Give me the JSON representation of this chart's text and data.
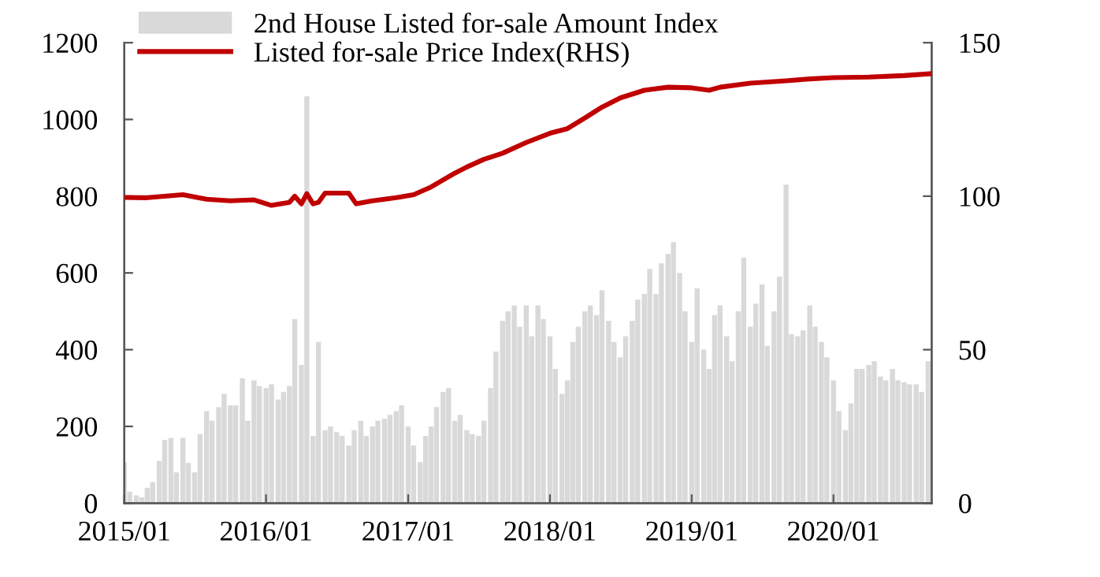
{
  "chart_data": {
    "type": "bar",
    "xlim": [
      "2015-01-01",
      "2020-09-10"
    ],
    "xticks": [
      {
        "value": "2015-01-01",
        "label": "2015/01"
      },
      {
        "value": "2016-01-01",
        "label": "2016/01"
      },
      {
        "value": "2017-01-01",
        "label": "2017/01"
      },
      {
        "value": "2018-01-01",
        "label": "2018/01"
      },
      {
        "value": "2019-01-01",
        "label": "2019/01"
      },
      {
        "value": "2020-01-01",
        "label": "2020/01"
      }
    ],
    "ylim": [
      0,
      1200
    ],
    "yticks": [
      0,
      200,
      400,
      600,
      800,
      1000,
      1200
    ],
    "y2lim": [
      0,
      150
    ],
    "y2ticks": [
      0,
      50,
      100,
      150
    ],
    "grid": false,
    "legend": "top left",
    "series": [
      {
        "name": "2nd House Listed for-sale Amount Index",
        "color": "#d9d9d9",
        "x": [
          "2015-01-01",
          "2015-01-15",
          "2015-02-01",
          "2015-02-15",
          "2015-03-01",
          "2015-03-15",
          "2015-04-01",
          "2015-04-15",
          "2015-05-01",
          "2015-05-15",
          "2015-06-01",
          "2015-06-15",
          "2015-07-01",
          "2015-07-15",
          "2015-08-01",
          "2015-08-15",
          "2015-09-01",
          "2015-09-15",
          "2015-10-01",
          "2015-10-15",
          "2015-11-01",
          "2015-11-15",
          "2015-12-01",
          "2015-12-15",
          "2016-01-01",
          "2016-01-15",
          "2016-02-01",
          "2016-02-15",
          "2016-03-01",
          "2016-03-15",
          "2016-04-01",
          "2016-04-15",
          "2016-05-01",
          "2016-05-15",
          "2016-06-01",
          "2016-06-15",
          "2016-07-01",
          "2016-07-15",
          "2016-08-01",
          "2016-08-15",
          "2016-09-01",
          "2016-09-15",
          "2016-10-01",
          "2016-10-15",
          "2016-11-01",
          "2016-11-15",
          "2016-12-01",
          "2016-12-15",
          "2017-01-01",
          "2017-01-15",
          "2017-02-01",
          "2017-02-15",
          "2017-03-01",
          "2017-03-15",
          "2017-04-01",
          "2017-04-15",
          "2017-05-01",
          "2017-05-15",
          "2017-06-01",
          "2017-06-15",
          "2017-07-01",
          "2017-07-15",
          "2017-08-01",
          "2017-08-15",
          "2017-09-01",
          "2017-09-15",
          "2017-10-01",
          "2017-10-15",
          "2017-11-01",
          "2017-11-15",
          "2017-12-01",
          "2017-12-15",
          "2018-01-01",
          "2018-01-15",
          "2018-02-01",
          "2018-02-15",
          "2018-03-01",
          "2018-03-15",
          "2018-04-01",
          "2018-04-15",
          "2018-05-01",
          "2018-05-15",
          "2018-06-01",
          "2018-06-15",
          "2018-07-01",
          "2018-07-15",
          "2018-08-01",
          "2018-08-15",
          "2018-09-01",
          "2018-09-15",
          "2018-10-01",
          "2018-10-15",
          "2018-11-01",
          "2018-11-15",
          "2018-12-01",
          "2018-12-15",
          "2019-01-01",
          "2019-01-15",
          "2019-02-01",
          "2019-02-15",
          "2019-03-01",
          "2019-03-15",
          "2019-04-01",
          "2019-04-15",
          "2019-05-01",
          "2019-05-15",
          "2019-06-01",
          "2019-06-15",
          "2019-07-01",
          "2019-07-15",
          "2019-08-01",
          "2019-08-15",
          "2019-09-01",
          "2019-09-15",
          "2019-10-01",
          "2019-10-15",
          "2019-11-01",
          "2019-11-15",
          "2019-12-01",
          "2019-12-15",
          "2020-01-01",
          "2020-01-15",
          "2020-02-01",
          "2020-02-15",
          "2020-03-01",
          "2020-03-15",
          "2020-04-01",
          "2020-04-15",
          "2020-05-01",
          "2020-05-15",
          "2020-06-01",
          "2020-06-15",
          "2020-07-01",
          "2020-07-15",
          "2020-08-01",
          "2020-08-15",
          "2020-09-01"
        ],
        "values": [
          107,
          30,
          20,
          15,
          40,
          55,
          110,
          165,
          170,
          80,
          170,
          105,
          80,
          180,
          240,
          215,
          250,
          285,
          255,
          255,
          325,
          215,
          320,
          305,
          300,
          310,
          270,
          290,
          305,
          480,
          360,
          1060,
          175,
          420,
          190,
          200,
          185,
          175,
          150,
          190,
          215,
          175,
          200,
          215,
          220,
          230,
          240,
          255,
          200,
          150,
          107,
          175,
          200,
          250,
          290,
          300,
          215,
          230,
          190,
          180,
          175,
          215,
          300,
          395,
          475,
          500,
          515,
          460,
          515,
          435,
          515,
          480,
          435,
          350,
          285,
          320,
          420,
          460,
          500,
          515,
          490,
          555,
          475,
          420,
          380,
          435,
          475,
          530,
          545,
          610,
          545,
          625,
          650,
          680,
          600,
          500,
          420,
          560,
          400,
          350,
          490,
          515,
          435,
          370,
          500,
          640,
          460,
          520,
          570,
          410,
          500,
          590,
          830,
          440,
          435,
          450,
          515,
          460,
          420,
          380,
          320,
          240,
          190,
          260,
          350,
          350,
          360,
          370,
          330,
          320,
          350,
          320,
          315,
          310,
          310,
          290,
          370
        ]
      },
      {
        "name": "Listed for-sale Price Index(RHS)",
        "type": "line",
        "axis": "y2",
        "color": "#c00000",
        "line_style": "solid",
        "marker": "none",
        "x": [
          "2015-01-01",
          "2015-03-01",
          "2015-06-01",
          "2015-08-01",
          "2015-10-01",
          "2015-12-01",
          "2016-01-15",
          "2016-03-01",
          "2016-03-15",
          "2016-04-01",
          "2016-04-15",
          "2016-05-01",
          "2016-05-15",
          "2016-06-01",
          "2016-08-01",
          "2016-08-20",
          "2016-10-01",
          "2016-12-01",
          "2017-01-15",
          "2017-03-01",
          "2017-05-01",
          "2017-06-01",
          "2017-07-15",
          "2017-09-01",
          "2017-11-01",
          "2018-01-01",
          "2018-02-15",
          "2018-04-01",
          "2018-05-15",
          "2018-07-01",
          "2018-09-01",
          "2018-11-01",
          "2019-01-01",
          "2019-02-15",
          "2019-03-15",
          "2019-06-01",
          "2019-09-01",
          "2019-11-01",
          "2020-01-01",
          "2020-04-01",
          "2020-07-01",
          "2020-09-08"
        ],
        "values": [
          99.6,
          99.5,
          100.5,
          99,
          98.5,
          98.8,
          97,
          98,
          100,
          97.5,
          100.8,
          97.5,
          98,
          101,
          101,
          97.5,
          98.5,
          99.5,
          100.5,
          103,
          107.5,
          109.5,
          112,
          114,
          117.5,
          120.5,
          122,
          125.5,
          129,
          132,
          134.5,
          135.5,
          135.3,
          134.5,
          135.5,
          136.8,
          137.6,
          138.2,
          138.6,
          138.8,
          139.3,
          139.9
        ]
      }
    ]
  }
}
